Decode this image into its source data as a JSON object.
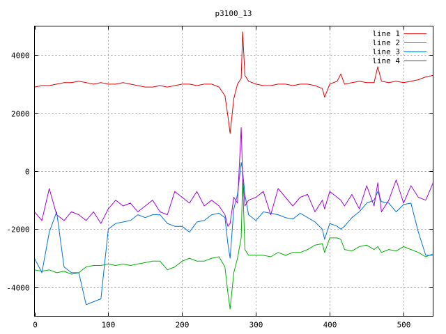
{
  "chart_data": {
    "type": "line",
    "title": "p3100_13",
    "xlabel": "",
    "ylabel": "",
    "xlim": [
      0,
      540
    ],
    "ylim": [
      -5000,
      5000
    ],
    "xticks": [
      0,
      100,
      200,
      300,
      400,
      500
    ],
    "yticks": [
      -4000,
      -2000,
      0,
      2000,
      4000
    ],
    "grid": true,
    "legend_position": "top-right",
    "x": [
      0,
      10,
      20,
      30,
      40,
      50,
      60,
      70,
      80,
      90,
      100,
      110,
      120,
      130,
      140,
      150,
      160,
      170,
      180,
      190,
      200,
      210,
      220,
      230,
      240,
      250,
      258,
      262,
      265,
      270,
      275,
      280,
      282,
      285,
      290,
      300,
      310,
      320,
      330,
      340,
      350,
      360,
      370,
      380,
      390,
      393,
      400,
      410,
      415,
      420,
      430,
      440,
      450,
      460,
      465,
      470,
      480,
      490,
      500,
      510,
      520,
      530,
      540
    ],
    "series": [
      {
        "name": "line 1",
        "color": "#e00000",
        "values": [
          2900,
          2950,
          2950,
          3000,
          3050,
          3050,
          3100,
          3050,
          3000,
          3050,
          3000,
          3000,
          3050,
          3000,
          2950,
          2900,
          2900,
          2950,
          2900,
          2950,
          3000,
          3000,
          2950,
          3000,
          3000,
          2900,
          2600,
          1900,
          1300,
          2500,
          3000,
          3200,
          4800,
          3300,
          3100,
          3000,
          2950,
          2950,
          3000,
          3000,
          2950,
          3000,
          3000,
          2950,
          2850,
          2550,
          3000,
          3100,
          3350,
          3000,
          3050,
          3100,
          3050,
          3050,
          3600,
          3100,
          3050,
          3100,
          3050,
          3100,
          3150,
          3250,
          3300
        ]
      },
      {
        "name": "line 2",
        "color": "#00b000",
        "values": [
          -3400,
          -3450,
          -3400,
          -3500,
          -3450,
          -3550,
          -3500,
          -3300,
          -3250,
          -3250,
          -3200,
          -3250,
          -3200,
          -3250,
          -3200,
          -3150,
          -3100,
          -3100,
          -3400,
          -3300,
          -3100,
          -3000,
          -3100,
          -3100,
          -3000,
          -2950,
          -3300,
          -4200,
          -4750,
          -3500,
          -3000,
          -2300,
          -300,
          -2700,
          -2900,
          -2900,
          -2900,
          -2950,
          -2800,
          -2900,
          -2800,
          -2800,
          -2700,
          -2550,
          -2500,
          -2800,
          -2300,
          -2300,
          -2350,
          -2700,
          -2750,
          -2600,
          -2550,
          -2700,
          -2600,
          -2800,
          -2700,
          -2750,
          -2600,
          -2700,
          -2800,
          -2950,
          -2850
        ]
      },
      {
        "name": "line 3",
        "color": "#0070e0",
        "values": [
          -3000,
          -3500,
          -2100,
          -1400,
          -3300,
          -3500,
          -3500,
          -4600,
          -4500,
          -4400,
          -2000,
          -1800,
          -1750,
          -1700,
          -1500,
          -1600,
          -1500,
          -1500,
          -1800,
          -1900,
          -1900,
          -2100,
          -1750,
          -1700,
          -1500,
          -1450,
          -1600,
          -2500,
          -3000,
          -1300,
          -800,
          300,
          0,
          -800,
          -1500,
          -1700,
          -1400,
          -1450,
          -1500,
          -1600,
          -1650,
          -1450,
          -1600,
          -1750,
          -2000,
          -2350,
          -1800,
          -1900,
          -2000,
          -1900,
          -1600,
          -1400,
          -1100,
          -1000,
          -700,
          -1050,
          -1100,
          -1400,
          -1150,
          -1100,
          -2100,
          -2900,
          -2900
        ]
      },
      {
        "name": "line 4",
        "color": "#a000e0",
        "values": [
          -1400,
          -1700,
          -600,
          -1500,
          -1700,
          -1400,
          -1500,
          -1700,
          -1400,
          -1800,
          -1300,
          -1000,
          -1200,
          -1100,
          -1400,
          -1200,
          -1000,
          -1400,
          -1500,
          -700,
          -900,
          -1100,
          -700,
          -1200,
          -1000,
          -1200,
          -1500,
          -1900,
          -1800,
          -900,
          -1100,
          1500,
          -200,
          -1200,
          -1000,
          -900,
          -700,
          -1500,
          -600,
          -900,
          -1200,
          -900,
          -800,
          -1400,
          -1000,
          -1300,
          -700,
          -900,
          -1000,
          -1200,
          -800,
          -1300,
          -500,
          -1200,
          -400,
          -1400,
          -1000,
          -300,
          -1100,
          -500,
          -900,
          -1000,
          -400
        ]
      }
    ]
  }
}
